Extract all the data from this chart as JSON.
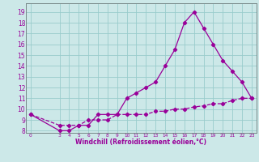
{
  "xlabel": "Windchill (Refroidissement éolien,°C)",
  "bg_color": "#cce8e8",
  "grid_color": "#99cccc",
  "line_color": "#990099",
  "x_ticks": [
    0,
    3,
    4,
    5,
    6,
    7,
    8,
    9,
    10,
    11,
    12,
    13,
    14,
    15,
    16,
    17,
    18,
    19,
    20,
    21,
    22,
    23
  ],
  "xlim": [
    -0.5,
    23.5
  ],
  "ylim": [
    7.8,
    19.8
  ],
  "y_ticks": [
    8,
    9,
    10,
    11,
    12,
    13,
    14,
    15,
    16,
    17,
    18,
    19
  ],
  "line1_x": [
    0,
    3,
    4,
    5,
    6,
    7,
    8,
    9,
    10,
    11,
    12,
    13,
    14,
    15,
    16,
    17,
    18,
    19,
    20,
    21,
    22,
    23
  ],
  "line1_y": [
    9.5,
    8.0,
    8.0,
    8.5,
    8.5,
    9.5,
    9.5,
    9.5,
    11.0,
    11.5,
    12.0,
    12.5,
    14.0,
    15.5,
    18.0,
    19.0,
    17.5,
    16.0,
    14.5,
    13.5,
    12.5,
    11.0
  ],
  "line2_x": [
    0,
    3,
    4,
    5,
    6,
    7,
    8,
    9,
    10,
    11,
    12,
    13,
    14,
    15,
    16,
    17,
    18,
    19,
    20,
    21,
    22,
    23
  ],
  "line2_y": [
    9.5,
    8.5,
    8.5,
    8.5,
    9.0,
    9.0,
    9.0,
    9.5,
    9.5,
    9.5,
    9.5,
    9.8,
    9.8,
    10.0,
    10.0,
    10.2,
    10.3,
    10.5,
    10.5,
    10.8,
    11.0,
    11.0
  ]
}
